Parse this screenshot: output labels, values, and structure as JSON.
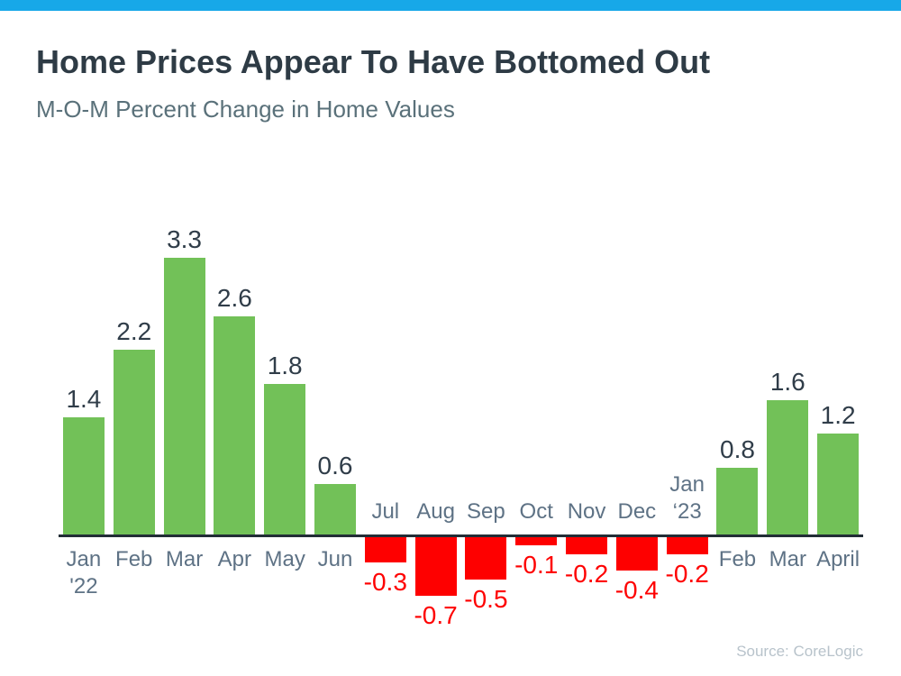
{
  "accent_bar_color": "#17a8e8",
  "chart_data": {
    "type": "bar",
    "title": "Home Prices Appear To Have Bottomed Out",
    "subtitle": "M-O-M Percent Change in Home Values",
    "source": "Source: CoreLogic",
    "xlabel": "",
    "ylabel": "",
    "ylim": [
      -0.7,
      3.3
    ],
    "grid": false,
    "legend": "none",
    "categories": [
      "Jan '22",
      "Feb",
      "Mar",
      "Apr",
      "May",
      "Jun",
      "Jul",
      "Aug",
      "Sep",
      "Oct",
      "Nov",
      "Dec",
      "Jan ‘23",
      "Feb",
      "Mar",
      "April"
    ],
    "category_lines": [
      [
        "Jan",
        "'22"
      ],
      [
        "Feb"
      ],
      [
        "Mar"
      ],
      [
        "Apr"
      ],
      [
        "May"
      ],
      [
        "Jun"
      ],
      [
        "Jul"
      ],
      [
        "Aug"
      ],
      [
        "Sep"
      ],
      [
        "Oct"
      ],
      [
        "Nov"
      ],
      [
        "Dec"
      ],
      [
        "Jan",
        "‘23"
      ],
      [
        "Feb"
      ],
      [
        "Mar"
      ],
      [
        "April"
      ]
    ],
    "values": [
      1.4,
      2.2,
      3.3,
      2.6,
      1.8,
      0.6,
      -0.3,
      -0.7,
      -0.5,
      -0.1,
      -0.2,
      -0.4,
      -0.2,
      0.8,
      1.6,
      1.2
    ],
    "positive_color": "#72c158",
    "negative_color": "#fe0000",
    "positive_label_color": "#303d49",
    "negative_label_color": "#fe0000",
    "axis_color": "#222d36",
    "tick_label_color": "#5e7285"
  }
}
